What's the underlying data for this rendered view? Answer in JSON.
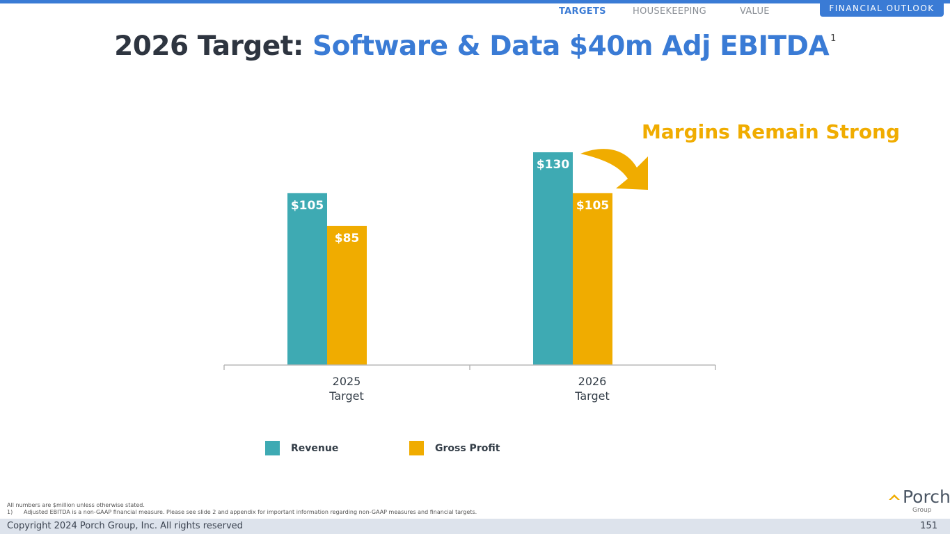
{
  "nav": {
    "items": [
      {
        "label": "TARGETS",
        "active": true
      },
      {
        "label": "HOUSEKEEPING",
        "active": false
      },
      {
        "label": "VALUE",
        "active": false
      }
    ],
    "section_tab": "FINANCIAL OUTLOOK"
  },
  "title": {
    "prefix": "2026 Target: ",
    "highlight": "Software & Data $40m Adj EBITDA",
    "footnote_ref": "1"
  },
  "callout": "Margins Remain Strong",
  "chart_data": {
    "type": "bar",
    "title": "",
    "categories": [
      [
        "2025",
        "Target"
      ],
      [
        "2026",
        "Target"
      ]
    ],
    "series": [
      {
        "name": "Revenue",
        "values": [
          105,
          130
        ],
        "labels": [
          "$105",
          "$130"
        ],
        "color": "#3eaab3"
      },
      {
        "name": "Gross Profit",
        "values": [
          85,
          105
        ],
        "labels": [
          "$85",
          "$105"
        ],
        "color": "#f0ac00"
      }
    ],
    "xlabel": "",
    "ylabel": "",
    "ylim": [
      0,
      130
    ],
    "grid": false,
    "legend_position": "bottom"
  },
  "footnotes": {
    "note": "All numbers are $million unless otherwise stated.",
    "item_num": "1)",
    "item_text": "Adjusted EBITDA is a non-GAAP financial measure. Please see slide 2 and appendix for important information regarding non-GAAP measures and financial targets."
  },
  "footer": {
    "copyright": "Copyright 2024 Porch Group, Inc. All rights reserved",
    "page_number": "151"
  },
  "logo": {
    "word": "Porch",
    "sub": "Group"
  }
}
